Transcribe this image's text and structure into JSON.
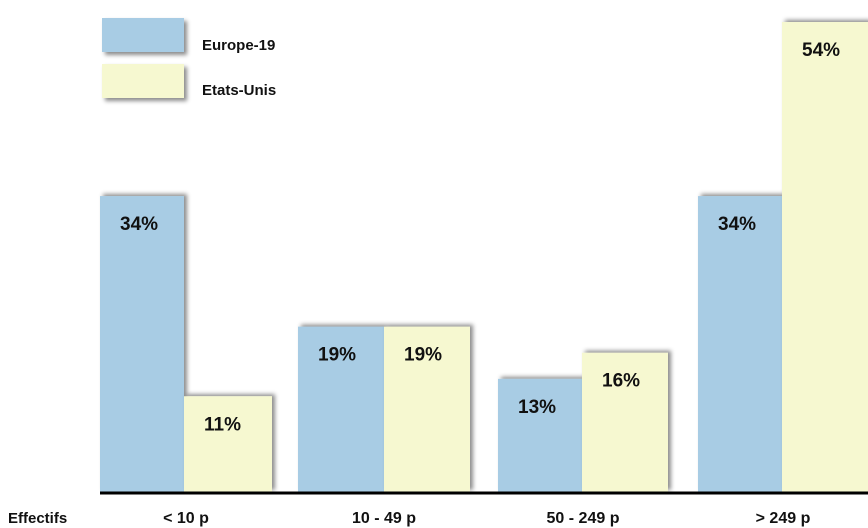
{
  "colors": {
    "europe": "#a8cce4",
    "usa": "#f6f8d0",
    "axis": "#000000",
    "text": "#111111"
  },
  "chart_data": {
    "type": "bar",
    "xlabel": "Effectifs",
    "categories": [
      "< 10 p",
      "10 - 49 p",
      "50 - 249 p",
      "> 249 p"
    ],
    "series": [
      {
        "name": "Europe-19",
        "values": [
          34,
          19,
          13,
          34
        ],
        "labels": [
          "34%",
          "19%",
          "13%",
          "34%"
        ]
      },
      {
        "name": "Etats-Unis",
        "values": [
          11,
          19,
          16,
          54
        ],
        "labels": [
          "11%",
          "19%",
          "16%",
          "54%"
        ]
      }
    ],
    "ylim": [
      0,
      54
    ],
    "legend": "top-left",
    "grid": false
  }
}
